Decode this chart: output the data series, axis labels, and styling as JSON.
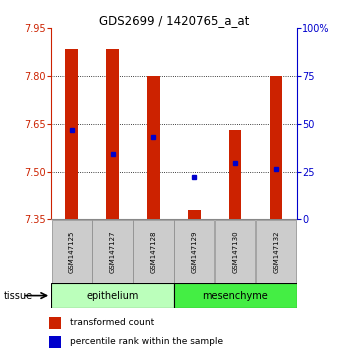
{
  "title": "GDS2699 / 1420765_a_at",
  "samples": [
    "GSM147125",
    "GSM147127",
    "GSM147128",
    "GSM147129",
    "GSM147130",
    "GSM147132"
  ],
  "bar_bottom": 7.35,
  "bar_tops": [
    7.885,
    7.885,
    7.8,
    7.38,
    7.63,
    7.8
  ],
  "blue_values": [
    7.63,
    7.555,
    7.608,
    7.483,
    7.528,
    7.508
  ],
  "ylim_left": [
    7.35,
    7.95
  ],
  "yticks_left": [
    7.35,
    7.5,
    7.65,
    7.8,
    7.95
  ],
  "ylim_right": [
    0,
    100
  ],
  "yticks_right": [
    0,
    25,
    50,
    75,
    100
  ],
  "ytick_right_labels": [
    "0",
    "25",
    "50",
    "75",
    "100%"
  ],
  "left_axis_color": "#cc2200",
  "right_axis_color": "#0000cc",
  "bar_color": "#cc2200",
  "blue_color": "#0000cc",
  "tissue_groups": [
    {
      "label": "epithelium",
      "indices": [
        0,
        1,
        2
      ],
      "color": "#bbffbb"
    },
    {
      "label": "mesenchyme",
      "indices": [
        3,
        4,
        5
      ],
      "color": "#44ee44"
    }
  ],
  "tissue_label": "tissue",
  "legend_red_label": "transformed count",
  "legend_blue_label": "percentile rank within the sample",
  "sample_box_color": "#cccccc",
  "grid_yticks": [
    7.5,
    7.65,
    7.8
  ]
}
